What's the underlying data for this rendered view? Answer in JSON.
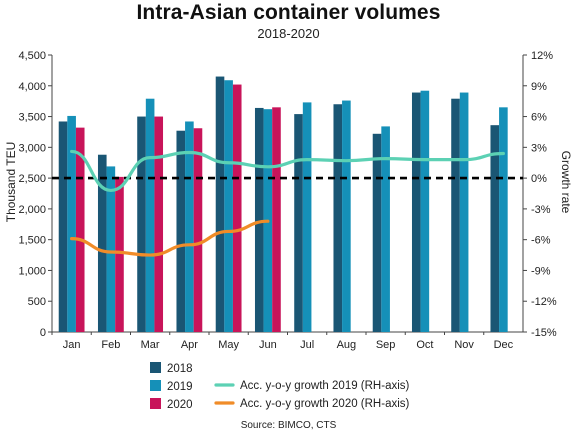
{
  "chart_data": {
    "type": "bar",
    "title": "Intra-Asian container volumes",
    "subtitle": "2018-2020",
    "ylabel": "Thousand TEU",
    "y2label": "Growth rate",
    "source": "Source: BIMCO, CTS",
    "categories": [
      "Jan",
      "Feb",
      "Mar",
      "Apr",
      "May",
      "Jun",
      "Jul",
      "Aug",
      "Sep",
      "Oct",
      "Nov",
      "Dec"
    ],
    "ylim": [
      0,
      4500
    ],
    "yticks": [
      0,
      500,
      1000,
      1500,
      2000,
      2500,
      3000,
      3500,
      4000,
      4500
    ],
    "ytick_labels": [
      "0",
      "500",
      "1,000",
      "1,500",
      "2,000",
      "2,500",
      "3,000",
      "3,500",
      "4,000",
      "4,500"
    ],
    "y2lim": [
      -15,
      12
    ],
    "y2ticks": [
      12,
      9,
      6,
      3,
      0,
      -3,
      -6,
      -9,
      -12,
      -15
    ],
    "y2tick_labels": [
      "12%",
      "9%",
      "6%",
      "3%",
      "0%",
      "-3%",
      "-6%",
      "-9%",
      "-12%",
      "-15%"
    ],
    "series": [
      {
        "name": "2018",
        "color": "#1a5674",
        "values": [
          3420,
          2880,
          3500,
          3270,
          4150,
          3640,
          3540,
          3700,
          3220,
          3890,
          3790,
          3360
        ]
      },
      {
        "name": "2019",
        "color": "#1590b8",
        "values": [
          3510,
          2690,
          3790,
          3420,
          4090,
          3620,
          3730,
          3760,
          3340,
          3920,
          3890,
          3650
        ]
      },
      {
        "name": "2020",
        "color": "#c8145a",
        "values": [
          3320,
          2520,
          3500,
          3310,
          4020,
          3650,
          null,
          null,
          null,
          null,
          null,
          null
        ]
      }
    ],
    "line_series": [
      {
        "name": "Acc. y-o-y growth 2019 (RH-axis)",
        "color": "#5cd1b4",
        "axis": "right",
        "values": [
          2.6,
          -1.2,
          2.0,
          2.5,
          1.5,
          1.1,
          1.8,
          1.7,
          1.9,
          1.8,
          1.8,
          2.4
        ]
      },
      {
        "name": "Acc. y-o-y growth 2020 (RH-axis)",
        "color": "#f08c28",
        "axis": "right",
        "values": [
          -5.9,
          -7.2,
          -7.5,
          -6.5,
          -5.2,
          -4.2,
          null,
          null,
          null,
          null,
          null,
          null
        ]
      }
    ],
    "reference_line": {
      "axis": "right",
      "value": 0,
      "style": "dashed",
      "color": "#000000"
    },
    "legend_position": "bottom",
    "grid": false
  }
}
